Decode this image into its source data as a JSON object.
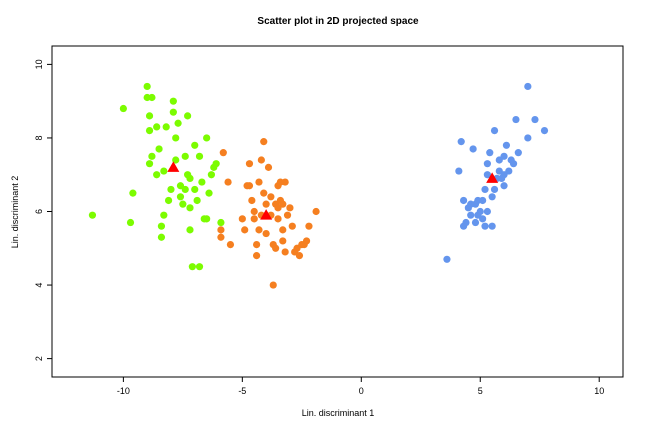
{
  "chart_data": {
    "type": "scatter",
    "title": "Scatter plot in 2D projected space",
    "xlabel": "Lin. discriminant 1",
    "ylabel": "Lin. discriminant 2",
    "xlim": [
      -13,
      11
    ],
    "ylim": [
      1.5,
      10.5
    ],
    "xticks": [
      -10,
      -5,
      0,
      5,
      10
    ],
    "yticks": [
      2,
      4,
      6,
      8,
      10
    ],
    "xtick_labels": [
      "-10",
      "-5",
      "0",
      "5",
      "10"
    ],
    "ytick_labels": [
      "2",
      "4",
      "6",
      "8",
      "10"
    ],
    "grid": false,
    "legend": "none",
    "series": [
      {
        "color": "#7cfc00",
        "marker": "circle",
        "points": [
          [
            -11.3,
            5.9
          ],
          [
            -10.0,
            8.8
          ],
          [
            -9.7,
            5.7
          ],
          [
            -9.6,
            6.5
          ],
          [
            -9.0,
            9.4
          ],
          [
            -9.0,
            9.1
          ],
          [
            -8.9,
            8.6
          ],
          [
            -8.9,
            8.2
          ],
          [
            -8.8,
            7.5
          ],
          [
            -8.9,
            7.3
          ],
          [
            -8.8,
            9.1
          ],
          [
            -8.6,
            8.3
          ],
          [
            -8.6,
            7.0
          ],
          [
            -8.5,
            7.7
          ],
          [
            -8.4,
            5.6
          ],
          [
            -8.4,
            5.3
          ],
          [
            -8.3,
            5.9
          ],
          [
            -8.3,
            7.1
          ],
          [
            -8.2,
            8.3
          ],
          [
            -8.1,
            6.3
          ],
          [
            -8.0,
            6.6
          ],
          [
            -7.9,
            9.0
          ],
          [
            -7.9,
            8.7
          ],
          [
            -7.8,
            8.0
          ],
          [
            -7.8,
            7.4
          ],
          [
            -7.7,
            8.4
          ],
          [
            -7.6,
            6.7
          ],
          [
            -7.6,
            6.4
          ],
          [
            -7.5,
            6.2
          ],
          [
            -7.4,
            7.5
          ],
          [
            -7.4,
            6.6
          ],
          [
            -7.3,
            7.0
          ],
          [
            -7.3,
            8.6
          ],
          [
            -7.2,
            6.9
          ],
          [
            -7.2,
            5.5
          ],
          [
            -7.2,
            6.1
          ],
          [
            -7.1,
            4.5
          ],
          [
            -7.0,
            7.8
          ],
          [
            -7.0,
            6.6
          ],
          [
            -6.9,
            6.3
          ],
          [
            -6.8,
            4.5
          ],
          [
            -6.8,
            7.5
          ],
          [
            -6.7,
            6.8
          ],
          [
            -6.6,
            5.8
          ],
          [
            -6.5,
            8.0
          ],
          [
            -6.5,
            5.8
          ],
          [
            -6.4,
            6.5
          ],
          [
            -6.3,
            7.0
          ],
          [
            -6.2,
            7.2
          ],
          [
            -6.1,
            7.3
          ],
          [
            -5.9,
            5.7
          ]
        ]
      },
      {
        "color": "#f57f20",
        "marker": "circle",
        "points": [
          [
            -5.9,
            5.5
          ],
          [
            -5.9,
            5.3
          ],
          [
            -5.8,
            7.6
          ],
          [
            -5.6,
            6.8
          ],
          [
            -5.5,
            5.1
          ],
          [
            -5.0,
            5.8
          ],
          [
            -4.9,
            5.5
          ],
          [
            -4.8,
            6.7
          ],
          [
            -4.7,
            7.3
          ],
          [
            -4.7,
            6.7
          ],
          [
            -4.6,
            6.3
          ],
          [
            -4.5,
            6.0
          ],
          [
            -4.5,
            5.8
          ],
          [
            -4.4,
            4.8
          ],
          [
            -4.4,
            5.1
          ],
          [
            -4.3,
            5.5
          ],
          [
            -4.3,
            6.8
          ],
          [
            -4.2,
            7.4
          ],
          [
            -4.2,
            5.9
          ],
          [
            -4.1,
            7.9
          ],
          [
            -4.1,
            6.5
          ],
          [
            -4.0,
            6.2
          ],
          [
            -4.0,
            5.4
          ],
          [
            -3.9,
            7.2
          ],
          [
            -3.8,
            6.4
          ],
          [
            -3.8,
            5.9
          ],
          [
            -3.7,
            5.1
          ],
          [
            -3.6,
            5.0
          ],
          [
            -3.6,
            6.2
          ],
          [
            -3.5,
            6.7
          ],
          [
            -3.5,
            5.8
          ],
          [
            -3.4,
            6.3
          ],
          [
            -3.4,
            6.8
          ],
          [
            -3.3,
            6.2
          ],
          [
            -3.3,
            5.5
          ],
          [
            -3.3,
            5.2
          ],
          [
            -3.2,
            4.9
          ],
          [
            -3.2,
            6.8
          ],
          [
            -3.1,
            5.9
          ],
          [
            -3.0,
            6.1
          ],
          [
            -2.9,
            5.6
          ],
          [
            -2.8,
            4.9
          ],
          [
            -2.7,
            5.0
          ],
          [
            -2.6,
            4.8
          ],
          [
            -2.5,
            5.1
          ],
          [
            -2.4,
            5.1
          ],
          [
            -2.3,
            5.2
          ],
          [
            -2.2,
            5.6
          ],
          [
            -1.9,
            6.0
          ],
          [
            -3.7,
            4.0
          ],
          [
            -3.5,
            6.1
          ]
        ]
      },
      {
        "color": "#6495ed",
        "marker": "circle",
        "points": [
          [
            3.6,
            4.7
          ],
          [
            4.1,
            7.1
          ],
          [
            4.2,
            7.9
          ],
          [
            4.3,
            6.3
          ],
          [
            4.3,
            5.6
          ],
          [
            4.4,
            5.7
          ],
          [
            4.5,
            6.1
          ],
          [
            4.6,
            6.2
          ],
          [
            4.6,
            5.9
          ],
          [
            4.7,
            7.7
          ],
          [
            4.8,
            6.2
          ],
          [
            4.8,
            5.7
          ],
          [
            4.9,
            5.9
          ],
          [
            5.0,
            6.0
          ],
          [
            5.1,
            6.3
          ],
          [
            5.1,
            5.8
          ],
          [
            5.2,
            5.6
          ],
          [
            5.2,
            6.6
          ],
          [
            5.3,
            7.0
          ],
          [
            5.3,
            7.3
          ],
          [
            5.4,
            7.6
          ],
          [
            5.5,
            6.4
          ],
          [
            5.6,
            8.2
          ],
          [
            5.6,
            6.6
          ],
          [
            5.7,
            6.9
          ],
          [
            5.8,
            7.4
          ],
          [
            5.8,
            7.1
          ],
          [
            5.9,
            6.9
          ],
          [
            6.0,
            7.5
          ],
          [
            6.0,
            7.0
          ],
          [
            6.0,
            6.7
          ],
          [
            6.1,
            7.8
          ],
          [
            6.2,
            7.1
          ],
          [
            6.3,
            7.4
          ],
          [
            6.4,
            7.3
          ],
          [
            6.5,
            8.5
          ],
          [
            6.6,
            7.6
          ],
          [
            7.0,
            8.0
          ],
          [
            7.0,
            9.4
          ],
          [
            7.3,
            8.5
          ],
          [
            7.7,
            8.2
          ],
          [
            5.5,
            5.6
          ],
          [
            5.3,
            6.0
          ],
          [
            4.9,
            6.3
          ]
        ]
      },
      {
        "name": "centroids",
        "color": "#ff0000",
        "marker": "triangle",
        "points": [
          [
            -7.9,
            7.2
          ],
          [
            -4.0,
            5.9
          ],
          [
            5.5,
            6.9
          ]
        ]
      }
    ]
  }
}
